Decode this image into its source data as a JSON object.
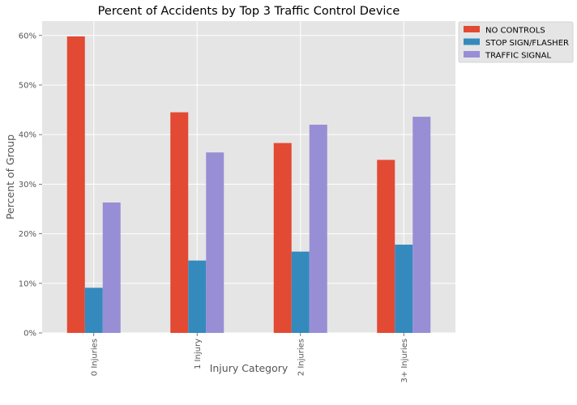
{
  "chart_data": {
    "type": "bar",
    "title": "Percent of Accidents by Top 3 Traffic Control Device",
    "xlabel": "Injury Category",
    "ylabel": "Percent of Group",
    "categories": [
      "0 Injuries",
      "1 Injury",
      "2 Injuries",
      "3+ Injuries"
    ],
    "series": [
      {
        "name": "NO CONTROLS",
        "color": "#E24A33",
        "values": [
          59.8,
          44.5,
          38.3,
          34.9
        ]
      },
      {
        "name": "STOP SIGN/FLASHER",
        "color": "#348ABD",
        "values": [
          9.1,
          14.6,
          16.4,
          17.8
        ]
      },
      {
        "name": "TRAFFIC SIGNAL",
        "color": "#988ED5",
        "values": [
          26.3,
          36.4,
          42.0,
          43.6
        ]
      }
    ],
    "ylim": [
      0,
      62.9
    ],
    "yticks": [
      0,
      10,
      20,
      30,
      40,
      50,
      60
    ],
    "ytick_labels": [
      "0%",
      "10%",
      "20%",
      "30%",
      "40%",
      "50%",
      "60%"
    ],
    "grid": true,
    "legend_position": "outside-top-right",
    "colors": {
      "plot_background": "#E5E5E5",
      "grid": "#FFFFFF",
      "text": "#555555",
      "title": "#000000"
    }
  }
}
